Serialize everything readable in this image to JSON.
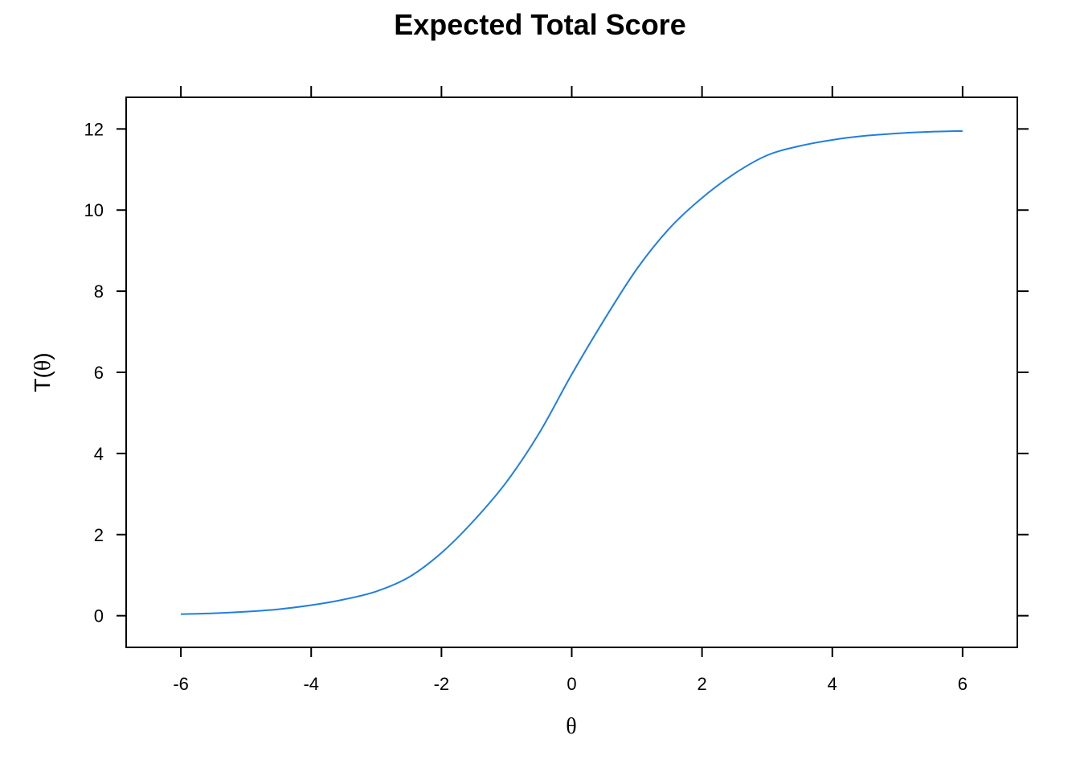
{
  "chart_data": {
    "type": "line",
    "title": "Expected Total Score",
    "xlabel": "θ",
    "ylabel": {
      "prefix": "T(",
      "symbol": "θ",
      "suffix": ")"
    },
    "xlim": [
      -6.84,
      6.84
    ],
    "ylim": [
      -0.78,
      12.78
    ],
    "x_ticks": [
      -6,
      -4,
      -2,
      0,
      2,
      4,
      6
    ],
    "y_ticks": [
      0,
      2,
      4,
      6,
      8,
      10,
      12
    ],
    "grid": false,
    "legend": "none",
    "colors": {
      "line": "#1f7fe0",
      "axis": "#000000",
      "background": "#ffffff"
    },
    "series": [
      {
        "x": [
          -6,
          -5.5,
          -5,
          -4.5,
          -4,
          -3.5,
          -3,
          -2.5,
          -2,
          -1.5,
          -1,
          -0.5,
          0,
          0.5,
          1,
          1.5,
          2,
          2.5,
          3,
          3.5,
          4,
          4.5,
          5,
          5.5,
          6
        ],
        "y": [
          0.04,
          0.06,
          0.1,
          0.16,
          0.26,
          0.4,
          0.6,
          0.95,
          1.55,
          2.35,
          3.3,
          4.5,
          5.95,
          7.3,
          8.55,
          9.55,
          10.3,
          10.9,
          11.35,
          11.58,
          11.73,
          11.83,
          11.89,
          11.93,
          11.95
        ]
      }
    ]
  }
}
